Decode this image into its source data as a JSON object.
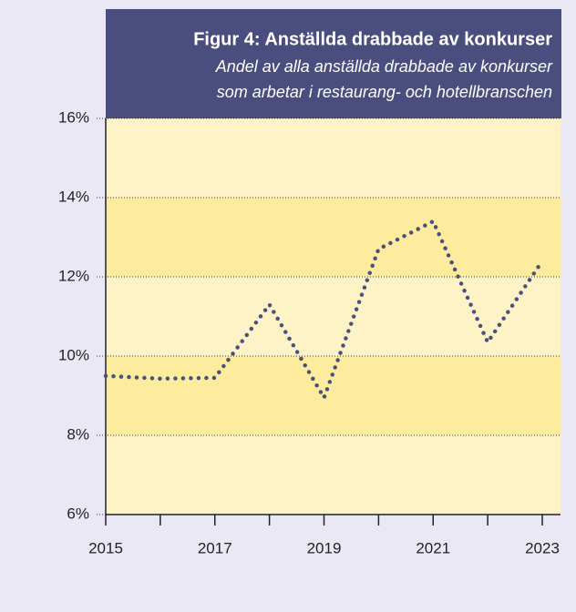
{
  "chart_data": {
    "type": "line",
    "title": "Figur 4: Anställda drabbade av konkurser",
    "subtitle": [
      "Andel av alla anställda drabbade av konkurser",
      "som arbetar i restaurang- och hotellbranschen"
    ],
    "x": [
      2015,
      2016,
      2017,
      2018,
      2019,
      2020,
      2021,
      2022,
      2023
    ],
    "series": [
      {
        "name": "Andel",
        "color": "#4b4f7c",
        "values": [
          9.5,
          9.43,
          9.45,
          11.3,
          8.95,
          12.7,
          13.4,
          10.35,
          12.4
        ]
      }
    ],
    "xlim": [
      2015,
      2023
    ],
    "xticks": [
      2015,
      2017,
      2019,
      2021,
      2023
    ],
    "xminorticks": [
      2016,
      2018,
      2020,
      2022
    ],
    "ylim": [
      6,
      16
    ],
    "yticks": [
      {
        "value": 6,
        "label": "6%"
      },
      {
        "value": 8,
        "label": "8%"
      },
      {
        "value": 10,
        "label": "10%"
      },
      {
        "value": 12,
        "label": "12%"
      },
      {
        "value": 14,
        "label": "14%"
      },
      {
        "value": 16,
        "label": "16%"
      }
    ],
    "grid": true,
    "band_colors": [
      "#fdf3c6",
      "#fdec9e"
    ]
  }
}
